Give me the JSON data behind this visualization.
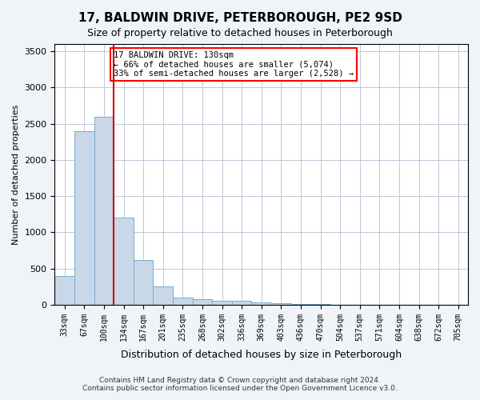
{
  "title": "17, BALDWIN DRIVE, PETERBOROUGH, PE2 9SD",
  "subtitle": "Size of property relative to detached houses in Peterborough",
  "xlabel": "Distribution of detached houses by size in Peterborough",
  "ylabel": "Number of detached properties",
  "bar_color": "#c8d8e8",
  "bar_edge_color": "#7aaaca",
  "vline_color": "#cc0000",
  "vline_x": 3,
  "categories": [
    "33sqm",
    "67sqm",
    "100sqm",
    "134sqm",
    "167sqm",
    "201sqm",
    "235sqm",
    "268sqm",
    "302sqm",
    "336sqm",
    "369sqm",
    "403sqm",
    "436sqm",
    "470sqm",
    "504sqm",
    "537sqm",
    "571sqm",
    "604sqm",
    "638sqm",
    "672sqm",
    "705sqm"
  ],
  "values": [
    400,
    2400,
    2600,
    1200,
    620,
    250,
    100,
    75,
    55,
    50,
    30,
    20,
    10,
    5,
    3,
    2,
    1,
    1,
    0,
    0,
    0
  ],
  "ylim": [
    0,
    3600
  ],
  "yticks": [
    0,
    500,
    1000,
    1500,
    2000,
    2500,
    3000,
    3500
  ],
  "annotation_title": "17 BALDWIN DRIVE: 130sqm",
  "annotation_line1": "← 66% of detached houses are smaller (5,074)",
  "annotation_line2": "33% of semi-detached houses are larger (2,528) →",
  "footer_line1": "Contains HM Land Registry data © Crown copyright and database right 2024.",
  "footer_line2": "Contains public sector information licensed under the Open Government Licence v3.0.",
  "background_color": "#f0f4f8",
  "plot_bg_color": "#ffffff",
  "grid_color": "#c0c8d8"
}
